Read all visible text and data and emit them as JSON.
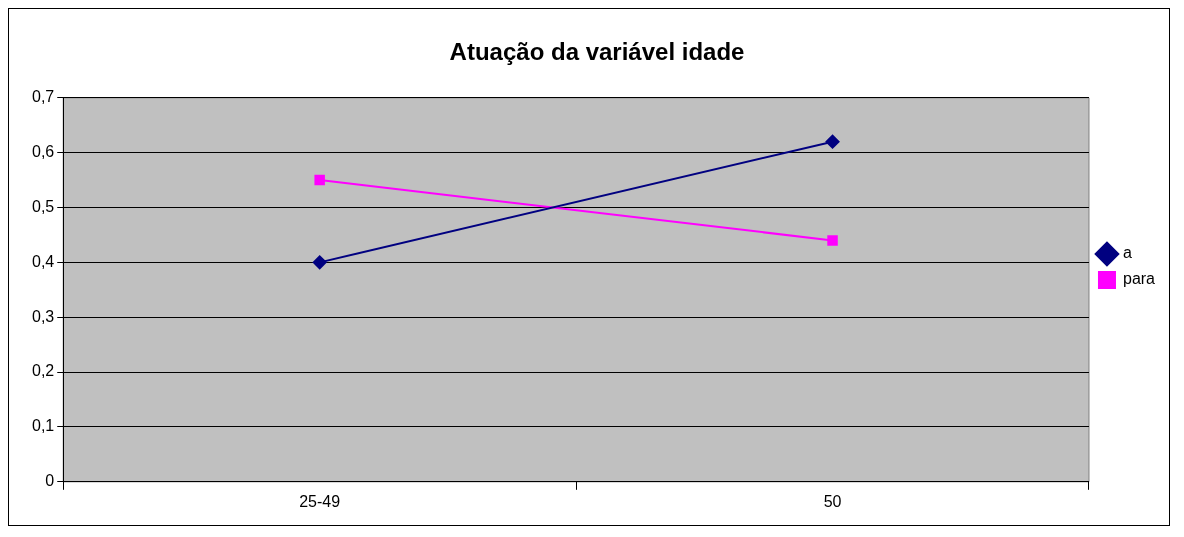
{
  "chart_data": {
    "type": "line",
    "title": "Atuação da variável idade",
    "categories": [
      "25-49",
      "50"
    ],
    "series": [
      {
        "name": "a",
        "color": "#000080",
        "values": [
          0.4,
          0.62
        ],
        "marker": "diamond"
      },
      {
        "name": "para",
        "color": "#ff00ff",
        "values": [
          0.55,
          0.44
        ],
        "marker": "square"
      }
    ],
    "ylim": [
      0,
      0.7
    ],
    "yticks": [
      {
        "value": 0,
        "label": "0"
      },
      {
        "value": 0.1,
        "label": "0,1"
      },
      {
        "value": 0.2,
        "label": "0,2"
      },
      {
        "value": 0.3,
        "label": "0,3"
      },
      {
        "value": 0.4,
        "label": "0,4"
      },
      {
        "value": 0.5,
        "label": "0,5"
      },
      {
        "value": 0.6,
        "label": "0,6"
      },
      {
        "value": 0.7,
        "label": "0,7"
      }
    ],
    "grid": "y",
    "legend": "right",
    "line_style": "solid"
  }
}
